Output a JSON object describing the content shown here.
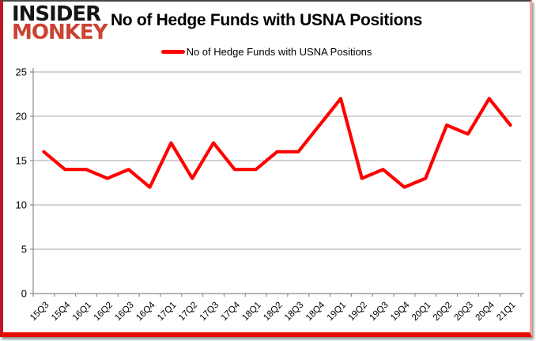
{
  "logo": {
    "line1": "INSIDER",
    "line2": "MONKEY",
    "line1_color": "#151515",
    "line2_color": "#cb4332"
  },
  "header": {
    "title": "No of Hedge Funds with USNA Positions"
  },
  "legend": {
    "label": "No of Hedge Funds with USNA Positions",
    "swatch_color": "#ff0000"
  },
  "colors": {
    "line": "#ff0000",
    "gridline": "#a6a6a6",
    "axis": "#8c8c8c",
    "tick_text": "#000000",
    "background": "#ffffff",
    "border_bottom": "#e90d00",
    "border_left": "#bf1722"
  },
  "chart_data": {
    "type": "line",
    "title": "No of Hedge Funds with USNA Positions",
    "categories": [
      "15Q3",
      "15Q4",
      "16Q1",
      "16Q2",
      "16Q3",
      "16Q4",
      "17Q1",
      "17Q2",
      "17Q3",
      "17Q4",
      "18Q1",
      "18Q2",
      "18Q3",
      "18Q4",
      "19Q1",
      "19Q2",
      "19Q3",
      "19Q4",
      "20Q1",
      "20Q2",
      "20Q3",
      "20Q4",
      "21Q1"
    ],
    "series": [
      {
        "name": "No of Hedge Funds with USNA Positions",
        "color": "#ff0000",
        "values": [
          16,
          14,
          14,
          13,
          14,
          12,
          17,
          13,
          17,
          14,
          14,
          16,
          16,
          19,
          22,
          13,
          14,
          12,
          13,
          19,
          18,
          22,
          19
        ]
      }
    ],
    "xlabel": "",
    "ylabel": "",
    "ylim": [
      0,
      25
    ],
    "yticks": [
      0,
      5,
      10,
      15,
      20,
      25
    ],
    "grid": true,
    "legend_position": "top",
    "x_tick_rotation": -45
  }
}
